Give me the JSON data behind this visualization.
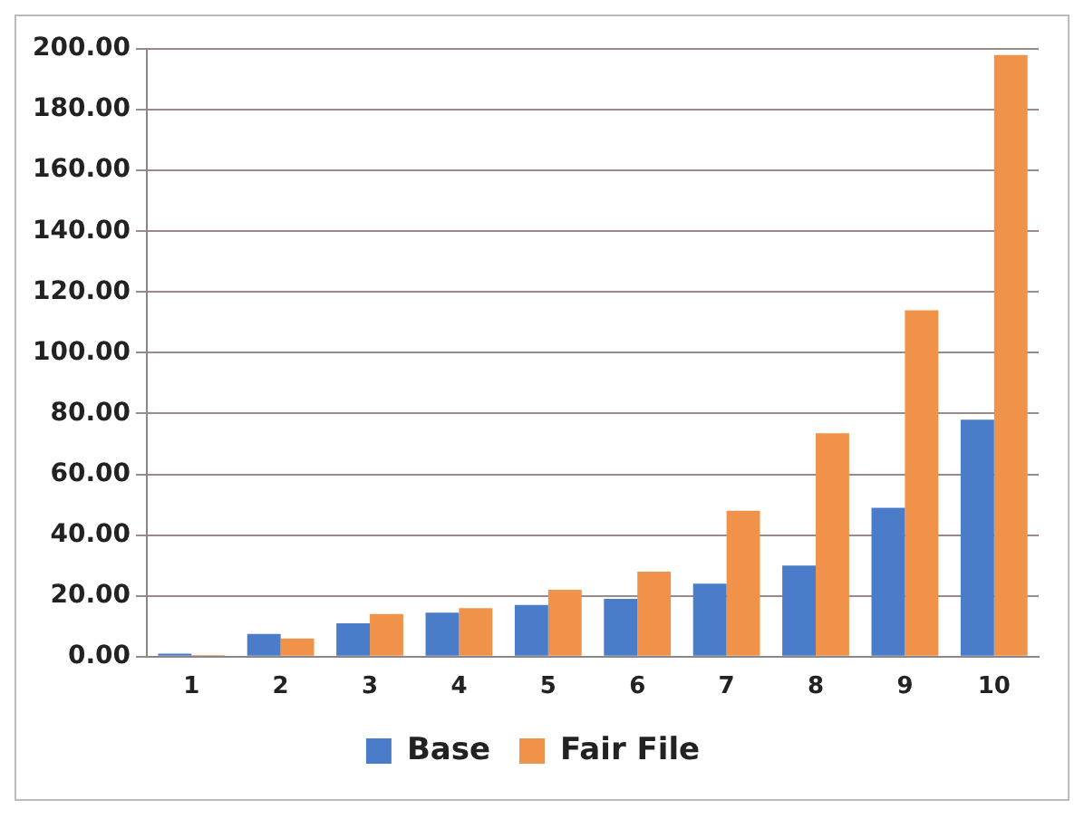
{
  "chart_data": {
    "type": "bar",
    "categories": [
      "1",
      "2",
      "3",
      "4",
      "5",
      "6",
      "7",
      "8",
      "9",
      "10"
    ],
    "series": [
      {
        "name": "Base",
        "color": "#4a7cc9",
        "values": [
          1,
          7.5,
          11,
          14.5,
          17,
          19,
          24,
          30,
          49,
          78
        ]
      },
      {
        "name": "Fair File",
        "color": "#f0924a",
        "values": [
          0.5,
          6,
          14,
          16,
          22,
          28,
          48,
          73.5,
          114,
          198
        ]
      }
    ],
    "ylim": [
      0,
      200
    ],
    "yticks": [
      {
        "value": 0,
        "label": "0.00"
      },
      {
        "value": 20,
        "label": "20.00"
      },
      {
        "value": 40,
        "label": "40.00"
      },
      {
        "value": 60,
        "label": "60.00"
      },
      {
        "value": 80,
        "label": "80.00"
      },
      {
        "value": 100,
        "label": "100.00"
      },
      {
        "value": 120,
        "label": "120.00"
      },
      {
        "value": 140,
        "label": "140.00"
      },
      {
        "value": 160,
        "label": "160.00"
      },
      {
        "value": 180,
        "label": "180.00"
      },
      {
        "value": 200,
        "label": "200.00"
      }
    ],
    "grid": "y",
    "legend": "bottom"
  }
}
